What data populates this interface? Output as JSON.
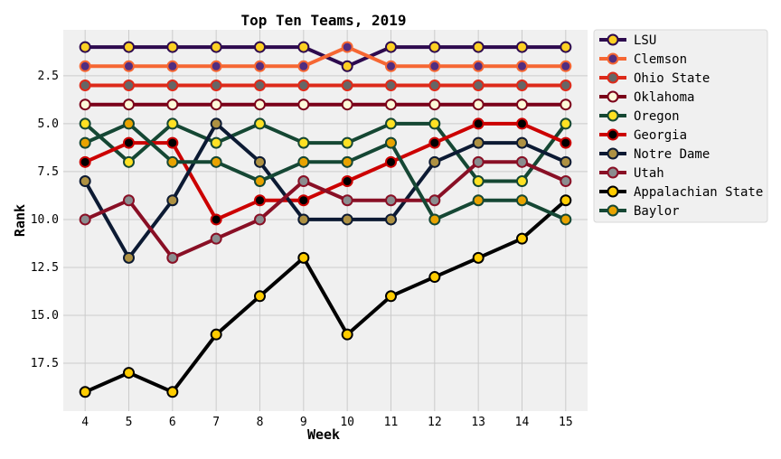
{
  "chart_data": {
    "type": "line",
    "title": "Top Ten Teams, 2019",
    "xlabel": "Week",
    "ylabel": "Rank",
    "x": [
      4,
      5,
      6,
      7,
      8,
      9,
      10,
      11,
      12,
      13,
      14,
      15
    ],
    "xlim": [
      3.5,
      15.5
    ],
    "ylim": [
      20,
      0.1
    ],
    "y_inverted": true,
    "xticks": [
      4,
      5,
      6,
      7,
      8,
      9,
      10,
      11,
      12,
      13,
      14,
      15
    ],
    "yticks": [
      2.5,
      5.0,
      7.5,
      10.0,
      12.5,
      15.0,
      17.5
    ],
    "ytick_labels": [
      "2.5",
      "5.0",
      "7.5",
      "10.0",
      "12.5",
      "15.0",
      "17.5"
    ],
    "grid": true,
    "legend_position": "outside-right",
    "series": [
      {
        "name": "LSU",
        "line_color": "#2d0a4e",
        "marker_fill": "#fdd023",
        "values": [
          1,
          1,
          1,
          1,
          1,
          1,
          2,
          1,
          1,
          1,
          1,
          1
        ]
      },
      {
        "name": "Clemson",
        "line_color": "#f66733",
        "marker_fill": "#522d80",
        "values": [
          2,
          2,
          2,
          2,
          2,
          2,
          1,
          2,
          2,
          2,
          2,
          2
        ]
      },
      {
        "name": "Ohio State",
        "line_color": "#dd2a1a",
        "marker_fill": "#666666",
        "values": [
          3,
          3,
          3,
          3,
          3,
          3,
          3,
          3,
          3,
          3,
          3,
          3
        ]
      },
      {
        "name": "Oklahoma",
        "line_color": "#7a0019",
        "marker_fill": "#fdf9d8",
        "values": [
          4,
          4,
          4,
          4,
          4,
          4,
          4,
          4,
          4,
          4,
          4,
          4
        ]
      },
      {
        "name": "Oregon",
        "line_color": "#154733",
        "marker_fill": "#fee123",
        "values": [
          5,
          7,
          5,
          6,
          5,
          6,
          6,
          5,
          5,
          8,
          8,
          5
        ]
      },
      {
        "name": "Georgia",
        "line_color": "#cc0000",
        "marker_fill": "#000000",
        "values": [
          7,
          6,
          6,
          10,
          9,
          9,
          8,
          7,
          6,
          5,
          5,
          6
        ]
      },
      {
        "name": "Notre Dame",
        "line_color": "#0c1a33",
        "marker_fill": "#ae9142",
        "values": [
          8,
          12,
          9,
          5,
          7,
          10,
          10,
          10,
          7,
          6,
          6,
          7
        ]
      },
      {
        "name": "Utah",
        "line_color": "#890f25",
        "marker_fill": "#8a8d8f",
        "values": [
          10,
          9,
          12,
          11,
          10,
          8,
          9,
          9,
          9,
          7,
          7,
          8
        ]
      },
      {
        "name": "Appalachian State",
        "line_color": "#000000",
        "marker_fill": "#ffcc00",
        "values": [
          19,
          18,
          19,
          16,
          14,
          12,
          16,
          14,
          13,
          12,
          11,
          9
        ]
      },
      {
        "name": "Baylor",
        "line_color": "#154734",
        "marker_fill": "#e8a300",
        "values": [
          6,
          5,
          7,
          7,
          8,
          7,
          7,
          6,
          10,
          9,
          9,
          10
        ]
      }
    ]
  }
}
